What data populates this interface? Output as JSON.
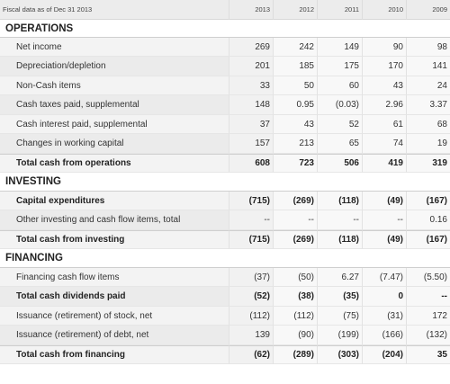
{
  "header": {
    "label": "Fiscal data as of Dec 31 2013",
    "years": [
      "2013",
      "2012",
      "2011",
      "2010",
      "2009"
    ]
  },
  "sections": [
    {
      "title": "OPERATIONS",
      "rows": [
        {
          "label": "Net income",
          "values": [
            "269",
            "242",
            "149",
            "90",
            "98"
          ],
          "bold": false
        },
        {
          "label": "Depreciation/depletion",
          "values": [
            "201",
            "185",
            "175",
            "170",
            "141"
          ],
          "bold": false
        },
        {
          "label": "Non-Cash items",
          "values": [
            "33",
            "50",
            "60",
            "43",
            "24"
          ],
          "bold": false
        },
        {
          "label": "Cash taxes paid, supplemental",
          "values": [
            "148",
            "0.95",
            "(0.03)",
            "2.96",
            "3.37"
          ],
          "bold": false
        },
        {
          "label": "Cash interest paid, supplemental",
          "values": [
            "37",
            "43",
            "52",
            "61",
            "68"
          ],
          "bold": false
        },
        {
          "label": "Changes in working capital",
          "values": [
            "157",
            "213",
            "65",
            "74",
            "19"
          ],
          "bold": false
        },
        {
          "label": "Total cash from operations",
          "values": [
            "608",
            "723",
            "506",
            "419",
            "319"
          ],
          "bold": true
        }
      ]
    },
    {
      "title": "INVESTING",
      "rows": [
        {
          "label": "Capital expenditures",
          "values": [
            "(715)",
            "(269)",
            "(118)",
            "(49)",
            "(167)"
          ],
          "bold": true
        },
        {
          "label": "Other investing and cash flow items, total",
          "values": [
            "--",
            "--",
            "--",
            "--",
            "0.16"
          ],
          "bold": false
        },
        {
          "label": "Total cash from investing",
          "values": [
            "(715)",
            "(269)",
            "(118)",
            "(49)",
            "(167)"
          ],
          "bold": true
        }
      ]
    },
    {
      "title": "FINANCING",
      "rows": [
        {
          "label": "Financing cash flow items",
          "values": [
            "(37)",
            "(50)",
            "6.27",
            "(7.47)",
            "(5.50)"
          ],
          "bold": false
        },
        {
          "label": "Total cash dividends paid",
          "values": [
            "(52)",
            "(38)",
            "(35)",
            "0",
            "--"
          ],
          "bold": true
        },
        {
          "label": "Issuance (retirement) of stock, net",
          "values": [
            "(112)",
            "(112)",
            "(75)",
            "(31)",
            "172"
          ],
          "bold": false
        },
        {
          "label": "Issuance (retirement) of debt, net",
          "values": [
            "139",
            "(90)",
            "(199)",
            "(166)",
            "(132)"
          ],
          "bold": false
        },
        {
          "label": "Total cash from financing",
          "values": [
            "(62)",
            "(289)",
            "(303)",
            "(204)",
            "35"
          ],
          "bold": true
        }
      ]
    }
  ]
}
